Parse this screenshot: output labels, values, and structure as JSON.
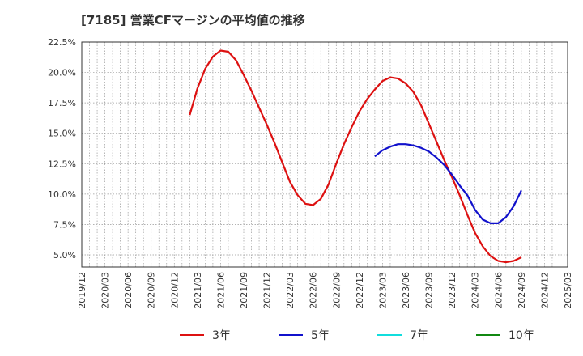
{
  "chart_data": {
    "type": "line",
    "title": "[7185]  営業CFマージンの平均値の推移",
    "xlabel": "",
    "ylabel": "",
    "x_ticks": [
      "2019/12",
      "2020/03",
      "2020/06",
      "2020/09",
      "2020/12",
      "2021/03",
      "2021/06",
      "2021/09",
      "2021/12",
      "2022/03",
      "2022/06",
      "2022/09",
      "2022/12",
      "2023/03",
      "2023/06",
      "2023/09",
      "2023/12",
      "2024/03",
      "2024/06",
      "2024/09",
      "2024/12",
      "2025/03"
    ],
    "y_ticks": [
      "5.0%",
      "7.5%",
      "10.0%",
      "12.5%",
      "15.0%",
      "17.5%",
      "20.0%",
      "22.5%"
    ],
    "ylim": [
      4.0,
      22.5
    ],
    "grid": true,
    "legend_position": "bottom",
    "series": [
      {
        "name": "3年",
        "color": "#dd1111",
        "x": [
          "2021/02",
          "2021/03",
          "2021/04",
          "2021/05",
          "2021/06",
          "2021/07",
          "2021/08",
          "2021/09",
          "2021/10",
          "2021/11",
          "2021/12",
          "2022/01",
          "2022/02",
          "2022/03",
          "2022/04",
          "2022/05",
          "2022/06",
          "2022/07",
          "2022/08",
          "2022/09",
          "2022/10",
          "2022/11",
          "2022/12",
          "2023/01",
          "2023/02",
          "2023/03",
          "2023/04",
          "2023/05",
          "2023/06",
          "2023/07",
          "2023/08",
          "2023/09",
          "2023/10",
          "2023/11",
          "2023/12",
          "2024/01",
          "2024/02",
          "2024/03",
          "2024/04",
          "2024/05",
          "2024/06",
          "2024/07",
          "2024/08",
          "2024/09"
        ],
        "values": [
          16.5,
          18.7,
          20.3,
          21.3,
          21.8,
          21.7,
          21.0,
          19.8,
          18.5,
          17.1,
          15.7,
          14.2,
          12.6,
          11.0,
          9.9,
          9.2,
          9.1,
          9.6,
          10.8,
          12.5,
          14.1,
          15.5,
          16.8,
          17.8,
          18.6,
          19.3,
          19.6,
          19.5,
          19.1,
          18.4,
          17.3,
          15.8,
          14.3,
          12.8,
          11.4,
          9.9,
          8.3,
          6.8,
          5.7,
          4.9,
          4.5,
          4.4,
          4.5,
          4.8
        ]
      },
      {
        "name": "5年",
        "color": "#1111cc",
        "x": [
          "2023/02",
          "2023/03",
          "2023/04",
          "2023/05",
          "2023/06",
          "2023/07",
          "2023/08",
          "2023/09",
          "2023/10",
          "2023/11",
          "2023/12",
          "2024/01",
          "2024/02",
          "2024/03",
          "2024/04",
          "2024/05",
          "2024/06",
          "2024/07",
          "2024/08",
          "2024/09"
        ],
        "values": [
          13.1,
          13.6,
          13.9,
          14.1,
          14.1,
          14.0,
          13.8,
          13.5,
          13.0,
          12.4,
          11.6,
          10.7,
          9.9,
          8.7,
          7.9,
          7.6,
          7.6,
          8.1,
          9.0,
          10.3
        ]
      },
      {
        "name": "7年",
        "color": "#11dddd",
        "x": [],
        "values": []
      },
      {
        "name": "10年",
        "color": "#118811",
        "x": [],
        "values": []
      }
    ]
  }
}
